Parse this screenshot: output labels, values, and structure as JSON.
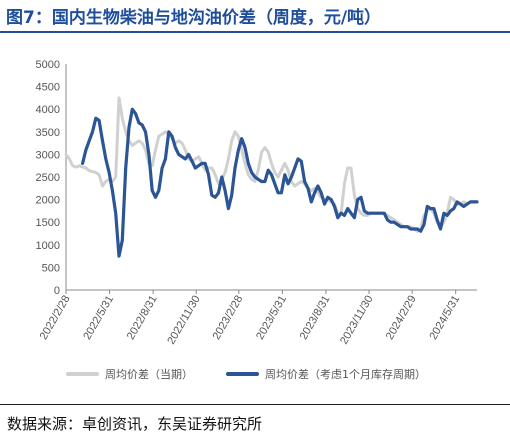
{
  "title": "图7：国内生物柴油与地沟油价差（周度，元/吨）",
  "source": "数据来源：卓创资讯，东吴证券研究所",
  "chart_data": {
    "type": "line",
    "ylim": [
      0,
      5000
    ],
    "yticks": [
      0,
      500,
      1000,
      1500,
      2000,
      2500,
      3000,
      3500,
      4000,
      4500,
      5000
    ],
    "xlim": [
      "2022-02-28",
      "2024-07-15"
    ],
    "xtick_dates": [
      "2022-02-28",
      "2022-05-31",
      "2022-08-31",
      "2022-11-30",
      "2023-02-28",
      "2023-05-31",
      "2023-08-31",
      "2023-11-30",
      "2024-02-29",
      "2024-05-31"
    ],
    "xtick_labels": [
      "2022/2/28",
      "2022/5/31",
      "2022/8/31",
      "2022/11/30",
      "2023/2/28",
      "2023/5/31",
      "2023/8/31",
      "2023/11/30",
      "2024/2/29",
      "2024/5/31"
    ],
    "grid": false,
    "legend_position": "bottom",
    "series": [
      {
        "name": "周均价差（当期）",
        "color": "#d0d0d0",
        "points": [
          [
            "2022-02-28",
            3000
          ],
          [
            "2022-03-07",
            2900
          ],
          [
            "2022-03-14",
            2750
          ],
          [
            "2022-03-21",
            2720
          ],
          [
            "2022-03-28",
            2750
          ],
          [
            "2022-04-04",
            2720
          ],
          [
            "2022-04-11",
            2700
          ],
          [
            "2022-04-18",
            2640
          ],
          [
            "2022-04-25",
            2620
          ],
          [
            "2022-05-02",
            2600
          ],
          [
            "2022-05-09",
            2550
          ],
          [
            "2022-05-16",
            2300
          ],
          [
            "2022-05-23",
            2400
          ],
          [
            "2022-05-30",
            2450
          ],
          [
            "2022-06-06",
            2400
          ],
          [
            "2022-06-13",
            2500
          ],
          [
            "2022-06-20",
            4250
          ],
          [
            "2022-06-27",
            3800
          ],
          [
            "2022-07-04",
            3500
          ],
          [
            "2022-07-11",
            3300
          ],
          [
            "2022-07-18",
            3200
          ],
          [
            "2022-07-25",
            3250
          ],
          [
            "2022-08-01",
            3300
          ],
          [
            "2022-08-08",
            3250
          ],
          [
            "2022-08-15",
            3100
          ],
          [
            "2022-08-22",
            2800
          ],
          [
            "2022-08-29",
            2750
          ],
          [
            "2022-09-05",
            3100
          ],
          [
            "2022-09-12",
            3400
          ],
          [
            "2022-09-19",
            3450
          ],
          [
            "2022-09-26",
            3500
          ],
          [
            "2022-10-03",
            3450
          ],
          [
            "2022-10-10",
            3350
          ],
          [
            "2022-10-17",
            3250
          ],
          [
            "2022-10-24",
            3300
          ],
          [
            "2022-10-31",
            3250
          ],
          [
            "2022-11-07",
            3100
          ],
          [
            "2022-11-14",
            2900
          ],
          [
            "2022-11-21",
            2850
          ],
          [
            "2022-11-28",
            2900
          ],
          [
            "2022-12-05",
            2950
          ],
          [
            "2022-12-12",
            2800
          ],
          [
            "2022-12-19",
            2650
          ],
          [
            "2022-12-26",
            2700
          ],
          [
            "2023-01-02",
            2700
          ],
          [
            "2023-01-09",
            2550
          ],
          [
            "2023-01-16",
            2350
          ],
          [
            "2023-01-23",
            2450
          ],
          [
            "2023-01-30",
            2600
          ],
          [
            "2023-02-06",
            2900
          ],
          [
            "2023-02-13",
            3300
          ],
          [
            "2023-02-20",
            3500
          ],
          [
            "2023-02-27",
            3400
          ],
          [
            "2023-03-06",
            3100
          ],
          [
            "2023-03-13",
            2800
          ],
          [
            "2023-03-20",
            2550
          ],
          [
            "2023-03-27",
            2450
          ],
          [
            "2023-04-03",
            2400
          ],
          [
            "2023-04-10",
            2650
          ],
          [
            "2023-04-17",
            3050
          ],
          [
            "2023-04-24",
            3150
          ],
          [
            "2023-05-01",
            3050
          ],
          [
            "2023-05-08",
            2800
          ],
          [
            "2023-05-15",
            2600
          ],
          [
            "2023-05-22",
            2500
          ],
          [
            "2023-05-29",
            2650
          ],
          [
            "2023-06-05",
            2800
          ],
          [
            "2023-06-12",
            2650
          ],
          [
            "2023-06-19",
            2400
          ],
          [
            "2023-06-26",
            2300
          ],
          [
            "2023-07-03",
            2350
          ],
          [
            "2023-07-10",
            2400
          ],
          [
            "2023-07-17",
            2350
          ],
          [
            "2023-07-24",
            2250
          ],
          [
            "2023-07-31",
            2200
          ],
          [
            "2023-08-07",
            2250
          ],
          [
            "2023-08-14",
            2150
          ],
          [
            "2023-08-21",
            2050
          ],
          [
            "2023-08-28",
            2000
          ],
          [
            "2023-09-04",
            2000
          ],
          [
            "2023-09-11",
            1950
          ],
          [
            "2023-09-18",
            1900
          ],
          [
            "2023-09-25",
            1700
          ],
          [
            "2023-10-02",
            1700
          ],
          [
            "2023-10-09",
            2350
          ],
          [
            "2023-10-16",
            2700
          ],
          [
            "2023-10-23",
            2700
          ],
          [
            "2023-10-30",
            2100
          ],
          [
            "2023-11-06",
            1800
          ],
          [
            "2023-11-13",
            1700
          ],
          [
            "2023-11-20",
            1650
          ],
          [
            "2023-11-27",
            1650
          ],
          [
            "2023-12-04",
            1700
          ],
          [
            "2023-12-11",
            1700
          ],
          [
            "2023-12-18",
            1700
          ],
          [
            "2023-12-25",
            1700
          ],
          [
            "2024-01-01",
            1700
          ],
          [
            "2024-01-08",
            1650
          ],
          [
            "2024-01-15",
            1600
          ],
          [
            "2024-01-22",
            1550
          ],
          [
            "2024-01-29",
            1500
          ],
          [
            "2024-02-05",
            1450
          ],
          [
            "2024-02-12",
            1400
          ],
          [
            "2024-02-19",
            1400
          ],
          [
            "2024-02-26",
            1400
          ],
          [
            "2024-03-04",
            1350
          ],
          [
            "2024-03-11",
            1300
          ],
          [
            "2024-03-18",
            1350
          ],
          [
            "2024-03-25",
            1650
          ],
          [
            "2024-04-01",
            1750
          ],
          [
            "2024-04-08",
            1800
          ],
          [
            "2024-04-15",
            1700
          ],
          [
            "2024-04-22",
            1500
          ],
          [
            "2024-04-29",
            1400
          ],
          [
            "2024-05-06",
            1500
          ],
          [
            "2024-05-13",
            1700
          ],
          [
            "2024-05-20",
            2050
          ],
          [
            "2024-05-27",
            2000
          ],
          [
            "2024-06-03",
            1900
          ],
          [
            "2024-06-10",
            1900
          ],
          [
            "2024-06-17",
            1950
          ],
          [
            "2024-06-24",
            1900
          ],
          [
            "2024-07-01",
            1950
          ],
          [
            "2024-07-08",
            1950
          ],
          [
            "2024-07-15",
            1950
          ]
        ]
      },
      {
        "name": "周均价差（考虑1个月库存周期）",
        "color": "#2b5595",
        "points": [
          [
            "2022-04-04",
            2800
          ],
          [
            "2022-04-11",
            3100
          ],
          [
            "2022-04-18",
            3300
          ],
          [
            "2022-04-25",
            3500
          ],
          [
            "2022-05-02",
            3800
          ],
          [
            "2022-05-09",
            3750
          ],
          [
            "2022-05-16",
            3300
          ],
          [
            "2022-05-23",
            2900
          ],
          [
            "2022-05-30",
            2600
          ],
          [
            "2022-06-06",
            2200
          ],
          [
            "2022-06-13",
            1700
          ],
          [
            "2022-06-20",
            750
          ],
          [
            "2022-06-27",
            1100
          ],
          [
            "2022-07-04",
            2700
          ],
          [
            "2022-07-11",
            3600
          ],
          [
            "2022-07-18",
            4000
          ],
          [
            "2022-07-25",
            3900
          ],
          [
            "2022-08-01",
            3700
          ],
          [
            "2022-08-08",
            3650
          ],
          [
            "2022-08-15",
            3500
          ],
          [
            "2022-08-22",
            3000
          ],
          [
            "2022-08-29",
            2200
          ],
          [
            "2022-09-05",
            2050
          ],
          [
            "2022-09-12",
            2200
          ],
          [
            "2022-09-19",
            2700
          ],
          [
            "2022-09-26",
            2900
          ],
          [
            "2022-10-03",
            3500
          ],
          [
            "2022-10-10",
            3400
          ],
          [
            "2022-10-17",
            3150
          ],
          [
            "2022-10-24",
            3000
          ],
          [
            "2022-10-31",
            2950
          ],
          [
            "2022-11-07",
            2900
          ],
          [
            "2022-11-14",
            3000
          ],
          [
            "2022-11-21",
            2850
          ],
          [
            "2022-11-28",
            2700
          ],
          [
            "2022-12-05",
            2750
          ],
          [
            "2022-12-12",
            2800
          ],
          [
            "2022-12-19",
            2800
          ],
          [
            "2022-12-26",
            2550
          ],
          [
            "2023-01-02",
            2100
          ],
          [
            "2023-01-09",
            2050
          ],
          [
            "2023-01-16",
            2150
          ],
          [
            "2023-01-23",
            2500
          ],
          [
            "2023-01-30",
            2200
          ],
          [
            "2023-02-06",
            1800
          ],
          [
            "2023-02-13",
            2100
          ],
          [
            "2023-02-20",
            2700
          ],
          [
            "2023-02-27",
            3100
          ],
          [
            "2023-03-06",
            3350
          ],
          [
            "2023-03-13",
            3150
          ],
          [
            "2023-03-20",
            2800
          ],
          [
            "2023-03-27",
            2600
          ],
          [
            "2023-04-03",
            2500
          ],
          [
            "2023-04-10",
            2450
          ],
          [
            "2023-04-17",
            2400
          ],
          [
            "2023-04-24",
            2400
          ],
          [
            "2023-05-01",
            2650
          ],
          [
            "2023-05-08",
            2550
          ],
          [
            "2023-05-15",
            2350
          ],
          [
            "2023-05-22",
            2150
          ],
          [
            "2023-05-29",
            2150
          ],
          [
            "2023-06-05",
            2550
          ],
          [
            "2023-06-12",
            2350
          ],
          [
            "2023-06-19",
            2500
          ],
          [
            "2023-06-26",
            2700
          ],
          [
            "2023-07-03",
            2900
          ],
          [
            "2023-07-10",
            2850
          ],
          [
            "2023-07-17",
            2400
          ],
          [
            "2023-07-24",
            2250
          ],
          [
            "2023-07-31",
            1950
          ],
          [
            "2023-08-07",
            2150
          ],
          [
            "2023-08-14",
            2300
          ],
          [
            "2023-08-21",
            2150
          ],
          [
            "2023-08-28",
            1900
          ],
          [
            "2023-09-04",
            2050
          ],
          [
            "2023-09-11",
            2000
          ],
          [
            "2023-09-18",
            1850
          ],
          [
            "2023-09-25",
            1600
          ],
          [
            "2023-10-02",
            1700
          ],
          [
            "2023-10-09",
            1650
          ],
          [
            "2023-10-16",
            1800
          ],
          [
            "2023-10-23",
            1700
          ],
          [
            "2023-10-30",
            1600
          ],
          [
            "2023-11-06",
            2000
          ],
          [
            "2023-11-13",
            2050
          ],
          [
            "2023-11-20",
            1750
          ],
          [
            "2023-11-27",
            1700
          ],
          [
            "2023-12-04",
            1700
          ],
          [
            "2023-12-11",
            1700
          ],
          [
            "2023-12-18",
            1700
          ],
          [
            "2023-12-25",
            1700
          ],
          [
            "2024-01-01",
            1700
          ],
          [
            "2024-01-08",
            1550
          ],
          [
            "2024-01-15",
            1500
          ],
          [
            "2024-01-22",
            1500
          ],
          [
            "2024-01-29",
            1450
          ],
          [
            "2024-02-05",
            1400
          ],
          [
            "2024-02-12",
            1400
          ],
          [
            "2024-02-19",
            1400
          ],
          [
            "2024-02-26",
            1350
          ],
          [
            "2024-03-04",
            1350
          ],
          [
            "2024-03-11",
            1350
          ],
          [
            "2024-03-18",
            1300
          ],
          [
            "2024-03-25",
            1450
          ],
          [
            "2024-04-01",
            1850
          ],
          [
            "2024-04-08",
            1800
          ],
          [
            "2024-04-15",
            1800
          ],
          [
            "2024-04-22",
            1550
          ],
          [
            "2024-04-29",
            1350
          ],
          [
            "2024-05-06",
            1700
          ],
          [
            "2024-05-13",
            1650
          ],
          [
            "2024-05-20",
            1750
          ],
          [
            "2024-05-27",
            1800
          ],
          [
            "2024-06-03",
            1950
          ],
          [
            "2024-06-10",
            1900
          ],
          [
            "2024-06-17",
            1850
          ],
          [
            "2024-06-24",
            1900
          ],
          [
            "2024-07-01",
            1950
          ],
          [
            "2024-07-08",
            1950
          ],
          [
            "2024-07-15",
            1950
          ]
        ]
      }
    ]
  }
}
